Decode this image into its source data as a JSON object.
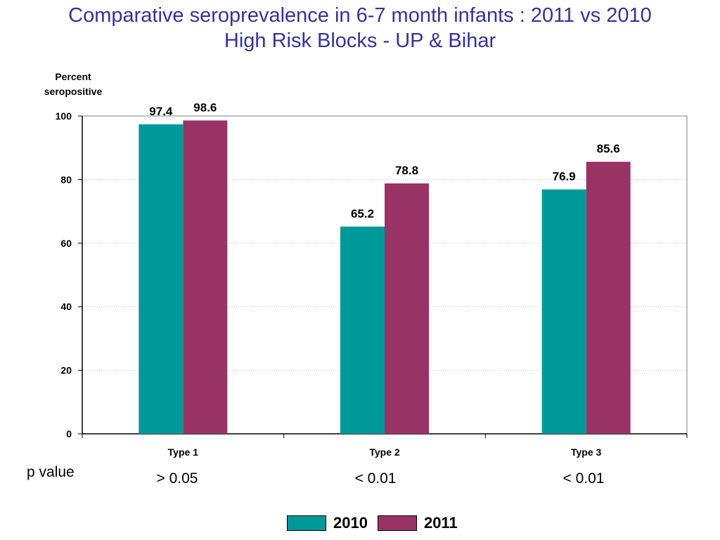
{
  "title": {
    "line1": "Comparative seroprevalence in 6-7 month infants : 2011 vs 2010",
    "line2": "High Risk Blocks - UP & Bihar"
  },
  "chart_data": {
    "type": "bar",
    "categories": [
      "Type 1",
      "Type 2",
      "Type 3"
    ],
    "series": [
      {
        "name": "2010",
        "values": [
          97.4,
          65.2,
          76.9
        ],
        "color": "#009999"
      },
      {
        "name": "2011",
        "values": [
          98.6,
          78.8,
          85.6
        ],
        "color": "#993366"
      }
    ],
    "ylabel_line1": "Percent",
    "ylabel_line2": "seropositive",
    "ylim": [
      0,
      100
    ],
    "yticks": [
      0,
      20,
      40,
      60,
      80,
      100
    ],
    "grid": true,
    "legend_position": "bottom-center"
  },
  "pvalues": {
    "label": "p value",
    "values": [
      "> 0.05",
      "< 0.01",
      "< 0.01"
    ]
  }
}
